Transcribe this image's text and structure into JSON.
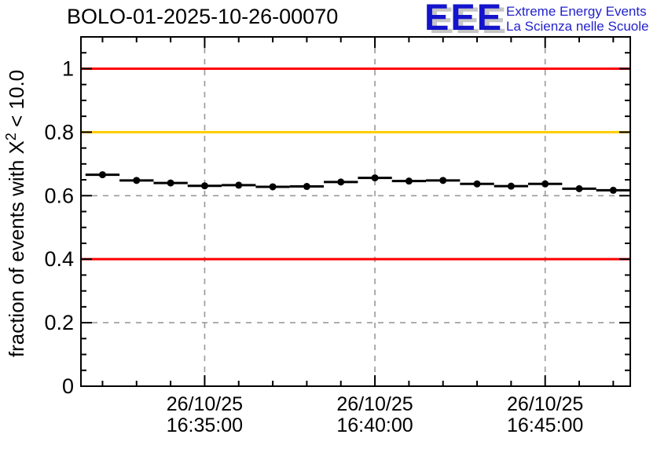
{
  "header": {
    "title": "BOLO-01-2025-10-26-00070",
    "logo": {
      "letters": "EEE",
      "line1": "Extreme Energy Events",
      "line2": "La Scienza nelle Scuole",
      "letters_color": "#1414cc",
      "shadow_color": "#c6c6c6",
      "text_color": "#2222cc"
    }
  },
  "chart_data": {
    "type": "line",
    "title": "BOLO-01-2025-10-26-00070",
    "ylabel": {
      "prefix": "fraction of events with X",
      "sup": "2",
      "suffix": " < 10.0"
    },
    "xlabel": "",
    "ylim": [
      0,
      1.1
    ],
    "grid": "dashed gray on major ticks, both axes",
    "legend": "none",
    "y_major_ticks": [
      {
        "value": 0.0,
        "label": "0"
      },
      {
        "value": 0.2,
        "label": "0.2"
      },
      {
        "value": 0.4,
        "label": "0.4"
      },
      {
        "value": 0.6,
        "label": "0.6"
      },
      {
        "value": 0.8,
        "label": "0.8"
      },
      {
        "value": 1.0,
        "label": "1"
      }
    ],
    "y_minor_step": 0.05,
    "x_axis": {
      "date": "26/10/25",
      "t_min": "16:31:22",
      "t_max": "16:47:30",
      "minor_step_s": 60,
      "major_ticks": [
        {
          "time": "16:35:00",
          "label_date": "26/10/25",
          "label_time": "16:35:00"
        },
        {
          "time": "16:40:00",
          "label_date": "26/10/25",
          "label_time": "16:40:00"
        },
        {
          "time": "16:45:00",
          "label_date": "26/10/25",
          "label_time": "16:45:00"
        }
      ]
    },
    "reference_lines": [
      {
        "y": 1.0,
        "color": "#ff0000"
      },
      {
        "y": 0.8,
        "color": "#ffcc00"
      },
      {
        "y": 0.4,
        "color": "#ff0000"
      }
    ],
    "grid_color": "#9a9a9a",
    "series": [
      {
        "name": "fraction of events with chi2 < 10",
        "marker": "filled-circle",
        "color": "#000000",
        "bin_half_width_s": 30,
        "y_err": 0.005,
        "points": [
          [
            "16:32:00",
            0.666
          ],
          [
            "16:33:00",
            0.648
          ],
          [
            "16:34:00",
            0.64
          ],
          [
            "16:35:00",
            0.631
          ],
          [
            "16:36:00",
            0.633
          ],
          [
            "16:37:00",
            0.628
          ],
          [
            "16:38:00",
            0.629
          ],
          [
            "16:39:00",
            0.643
          ],
          [
            "16:40:00",
            0.656
          ],
          [
            "16:41:00",
            0.646
          ],
          [
            "16:42:00",
            0.648
          ],
          [
            "16:43:00",
            0.637
          ],
          [
            "16:44:00",
            0.63
          ],
          [
            "16:45:00",
            0.637
          ],
          [
            "16:46:00",
            0.622
          ],
          [
            "16:47:00",
            0.617
          ]
        ]
      }
    ]
  }
}
